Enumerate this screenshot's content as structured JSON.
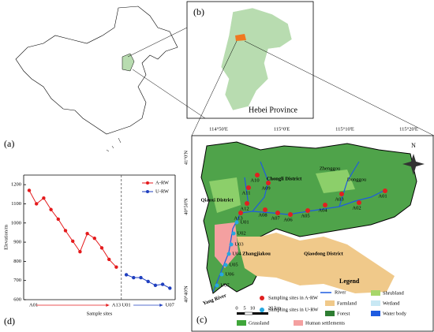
{
  "panels": {
    "a": "(a)",
    "b": "(b)",
    "c": "(c)",
    "d": "(d)"
  },
  "hebei_label": "Hebei Province",
  "longitudes": [
    "114°50'E",
    "115°0'E",
    "115°10'E",
    "115°20'E"
  ],
  "latitudes": [
    "41°0'N",
    "40°50'N",
    "40°40'N"
  ],
  "places": [
    "Chongli District",
    "Zhenggou",
    "Donggou",
    "Qiaoxi District",
    "Zhangjiakou",
    "Qiaodong District",
    "Yang River"
  ],
  "sites_a": [
    "A01",
    "A02",
    "A03",
    "A04",
    "A05",
    "A06",
    "A07",
    "A08",
    "A09",
    "A10",
    "A11",
    "A12",
    "A13"
  ],
  "sites_u": [
    "U01",
    "U02",
    "U03",
    "U04",
    "U05",
    "U06",
    "U07"
  ],
  "north": "N",
  "scale": [
    "0",
    "5",
    "10",
    "20 km"
  ],
  "legend": {
    "title": "Legend",
    "river": "River",
    "a": "Sampling sites in A-RW",
    "u": "Sampling sites in U-RW",
    "farmland": "Farmland",
    "forest": "Forest",
    "grassland": "Grassland",
    "shrubland": "Shrubland",
    "wetland": "Wetland",
    "water": "Water body",
    "human": "Human settlements"
  },
  "chart_data": {
    "type": "line",
    "ylabel": "Elevation/m",
    "xlabel": "Sample sites",
    "categories": [
      "A01",
      null,
      null,
      null,
      null,
      null,
      null,
      null,
      null,
      null,
      null,
      null,
      "A13",
      "U01",
      null,
      null,
      null,
      null,
      null,
      "U07"
    ],
    "series": [
      {
        "name": "A-RW",
        "color": "#e41a1c",
        "values": [
          1170,
          1100,
          1130,
          1070,
          1020,
          960,
          905,
          850,
          945,
          920,
          870,
          810,
          770,
          null,
          null,
          null,
          null,
          null,
          null,
          null
        ]
      },
      {
        "name": "U-RW",
        "color": "#1f3fbf",
        "values": [
          null,
          null,
          null,
          null,
          null,
          null,
          null,
          null,
          null,
          null,
          null,
          null,
          null,
          730,
          715,
          715,
          695,
          675,
          680,
          660
        ]
      }
    ],
    "ylim": [
      600,
      1250
    ],
    "yticks": [
      600,
      700,
      800,
      900,
      1000,
      1100,
      1200
    ]
  }
}
